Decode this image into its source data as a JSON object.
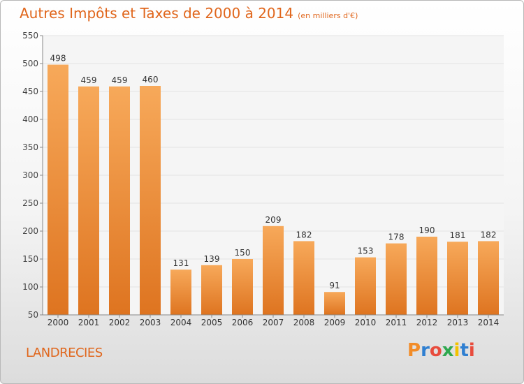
{
  "header": {
    "title": "Autres Impôts et Taxes de 2000 à 2014",
    "unit": "(en milliers d'€)"
  },
  "footer": {
    "place": "LANDRECIES",
    "brand": "Proxiti",
    "brand_colors": [
      "#f28c28",
      "#2f7fd1",
      "#e84c3d",
      "#2fa84f",
      "#f2c200",
      "#2f7fd1",
      "#e84c3d"
    ]
  },
  "colors": {
    "bar_top": "#f7a95a",
    "bar_bottom": "#de7420",
    "title": "#e0661c",
    "grid": "#e2e2e2",
    "plot_bg": "#f5f5f5"
  },
  "chart_data": {
    "type": "bar",
    "title": "Autres Impôts et Taxes de 2000 à 2014",
    "subtitle": "(en milliers d'€)",
    "categories": [
      "2000",
      "2001",
      "2002",
      "2003",
      "2004",
      "2005",
      "2006",
      "2007",
      "2008",
      "2009",
      "2010",
      "2011",
      "2012",
      "2013",
      "2014"
    ],
    "values": [
      498,
      459,
      459,
      460,
      131,
      139,
      150,
      209,
      182,
      91,
      153,
      178,
      190,
      181,
      182
    ],
    "ylim": [
      50,
      550
    ],
    "yticks": [
      50,
      100,
      150,
      200,
      250,
      300,
      350,
      400,
      450,
      500,
      550
    ],
    "grid": true,
    "data_labels": true
  }
}
